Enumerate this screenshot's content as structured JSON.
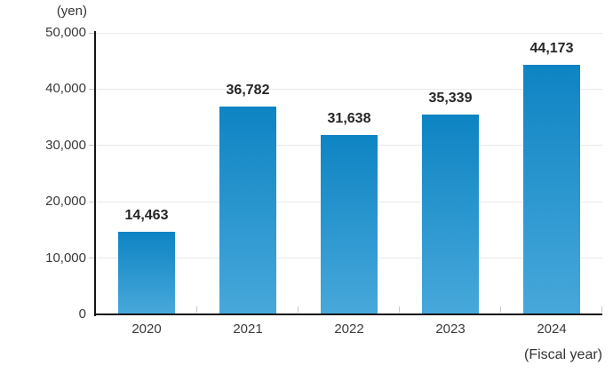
{
  "chart_data": {
    "type": "bar",
    "title": "",
    "unit_label": "(yen)",
    "xlabel": "(Fiscal year)",
    "categories": [
      "2020",
      "2021",
      "2022",
      "2023",
      "2024"
    ],
    "values": [
      14463,
      36782,
      31638,
      35339,
      44173
    ],
    "value_labels": [
      "14,463",
      "36,782",
      "31,638",
      "35,339",
      "44,173"
    ],
    "ylim": [
      0,
      50000
    ],
    "ytick_interval": 10000,
    "ytick_labels": [
      "0",
      "10,000",
      "20,000",
      "30,000",
      "40,000",
      "50,000"
    ],
    "grid": true,
    "legend": "none",
    "colors": {
      "bar_gradient_top": "#0e84c3",
      "bar_gradient_bottom": "#47a8da",
      "gridline": "#e9e9e9",
      "tick": "#c8c8c8",
      "axis": "#141414",
      "tick_text": "#3a3a3a",
      "value_text": "#262626",
      "title_text": "#333333"
    }
  }
}
